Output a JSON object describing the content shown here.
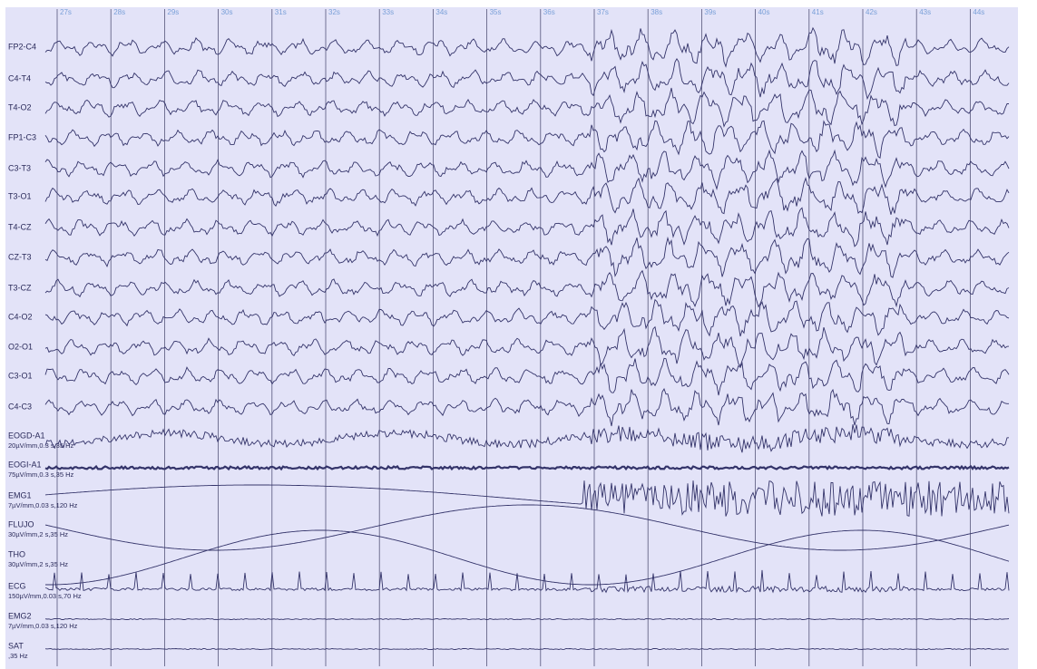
{
  "time_labels": [
    "27s",
    "28s",
    "29s",
    "30s",
    "31s",
    "32s",
    "33s",
    "34s",
    "35s",
    "36s",
    "37s",
    "38s",
    "39s",
    "40s",
    "41s",
    "42s",
    "43s",
    "44s"
  ],
  "channels": [
    {
      "label": "FP2-C4"
    },
    {
      "label": "C4-T4"
    },
    {
      "label": "T4-O2"
    },
    {
      "label": "FP1-C3"
    },
    {
      "label": "C3-T3"
    },
    {
      "label": "T3-O1"
    },
    {
      "label": "T4-CZ"
    },
    {
      "label": "CZ-T3"
    },
    {
      "label": "T3-CZ"
    },
    {
      "label": "C4-O2"
    },
    {
      "label": "O2-O1"
    },
    {
      "label": "C3-O1"
    },
    {
      "label": "C4-C3"
    },
    {
      "label": "EOGD-A1",
      "settings": "20µV/mm,0.3 s,35 Hz"
    },
    {
      "label": "EOGI-A1",
      "settings": "75µV/mm,0.3 s,35 Hz"
    },
    {
      "label": "EMG1",
      "settings": "7µV/mm,0.03 s,120 Hz"
    },
    {
      "label": "FLUJO",
      "settings": "30µV/mm,2 s,35 Hz"
    },
    {
      "label": "THO",
      "settings": "30µV/mm,2 s,35 Hz"
    },
    {
      "label": "ECG",
      "settings": "150µV/mm,0.03 s,70 Hz"
    },
    {
      "label": "EMG2",
      "settings": "7µV/mm,0.03 s,120 Hz"
    },
    {
      "label": "SAT",
      "settings": ",35 Hz"
    }
  ]
}
